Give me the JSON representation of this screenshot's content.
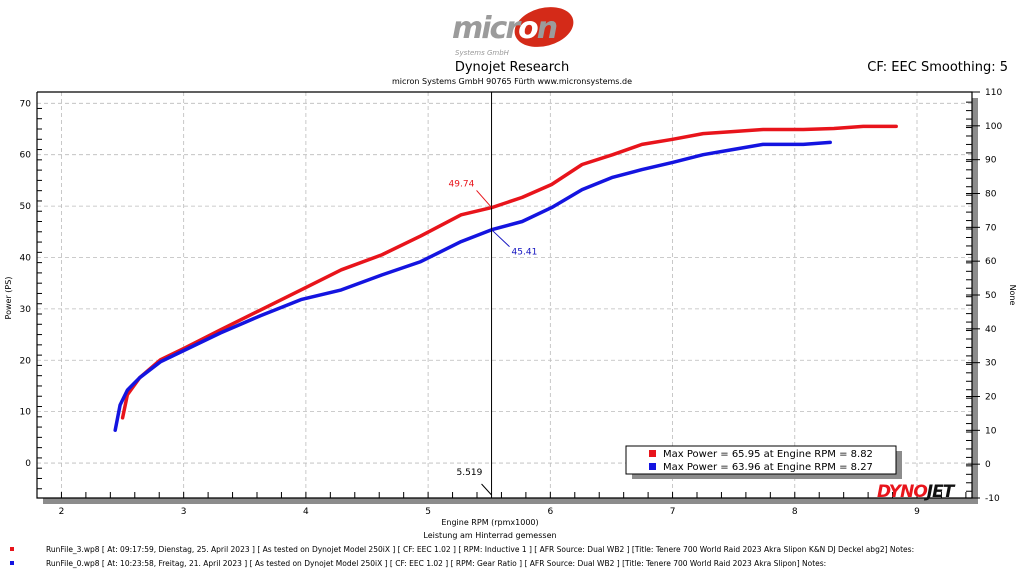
{
  "header": {
    "logo_text": "micron",
    "logo_sub": "Systems GmbH",
    "title": "Dynojet Research",
    "subtitle": "micron Systems GmbH  90765 Fürth www.micronsystems.de",
    "right_info": "CF: EEC Smoothing: 5"
  },
  "chart_data": {
    "type": "line",
    "xlabel": "Engine RPM (rpmx1000)",
    "ylabel": "Power (PS)",
    "y2label": "None",
    "note": "Leistung am Hinterrad gemessen",
    "xlim": [
      1.8,
      9.45
    ],
    "ylim": [
      -6.8,
      72.2
    ],
    "y2lim": [
      -10,
      110
    ],
    "xticks": [
      2,
      3,
      4,
      5,
      6,
      7,
      8,
      9
    ],
    "yticks": [
      0,
      10,
      20,
      30,
      40,
      50,
      60,
      70
    ],
    "y2ticks": [
      -10,
      0,
      10,
      20,
      30,
      40,
      50,
      60,
      70,
      80,
      90,
      100,
      110
    ],
    "grid": true,
    "cursor": {
      "x": 5.519,
      "label": "5.519"
    },
    "annotations": [
      {
        "series": 0,
        "value": "49.74",
        "x": 5.519,
        "y": 49.74
      },
      {
        "series": 1,
        "value": "45.41",
        "x": 5.519,
        "y": 45.41
      }
    ],
    "legend_placement": "bottom-right",
    "legend": [
      "Max Power = 65.95 at Engine RPM = 8.82",
      "Max Power = 63.96 at Engine RPM = 8.27"
    ],
    "series": [
      {
        "color": "#e8141b",
        "x": [
          2.5,
          2.54,
          2.64,
          2.81,
          3.01,
          3.3,
          3.63,
          3.96,
          4.29,
          4.62,
          4.94,
          5.27,
          5.52,
          5.77,
          6.01,
          6.26,
          6.51,
          6.75,
          7.0,
          7.25,
          7.49,
          7.74,
          8.07,
          8.32,
          8.56,
          8.83
        ],
        "y": [
          8.8,
          13.3,
          16.6,
          20.1,
          22.4,
          25.9,
          29.8,
          33.7,
          37.6,
          40.5,
          44.2,
          48.3,
          49.7,
          51.7,
          54.2,
          58.1,
          60.0,
          62.0,
          63.0,
          64.1,
          64.5,
          64.9,
          64.9,
          65.1,
          65.5,
          65.5
        ]
      },
      {
        "color": "#1414e0",
        "x": [
          2.44,
          2.48,
          2.54,
          2.64,
          2.81,
          3.01,
          3.3,
          3.63,
          3.96,
          4.29,
          4.62,
          4.94,
          5.27,
          5.52,
          5.77,
          6.01,
          6.26,
          6.51,
          6.75,
          7.0,
          7.25,
          7.49,
          7.74,
          8.07,
          8.29
        ],
        "y": [
          6.4,
          11.3,
          14.2,
          16.6,
          19.7,
          22.0,
          25.3,
          28.7,
          31.8,
          33.7,
          36.6,
          39.2,
          43.1,
          45.4,
          47.0,
          49.7,
          53.2,
          55.6,
          57.1,
          58.5,
          60.0,
          61.0,
          62.0,
          62.0,
          62.4
        ]
      }
    ]
  },
  "runs": [
    {
      "color": "#e8141b",
      "text": "RunFile_3.wp8  [ At:  09:17:59, Dienstag, 25. April 2023 ]  [ As tested on Dynojet Model 250iX ]  [ CF: EEC 1.02 ]  [ RPM: Inductive 1 ]  [ AFR Source: Dual WB2 ]  [Title: Tenere 700 World Raid 2023 Akra Slipon K&N DJ Deckel abg2]   Notes:"
    },
    {
      "color": "#1414e0",
      "text": "RunFile_0.wp8  [ At:  10:23:58, Freitag, 21. April 2023 ]  [ As tested on Dynojet Model 250iX ]  [ CF: EEC 1.02 ]  [ RPM: Gear Ratio ]  [ AFR Source: Dual WB2 ]  [Title: Tenere 700 World Raid 2023 Akra Slipon]   Notes:"
    }
  ],
  "brand_logo": "DYNOJET"
}
